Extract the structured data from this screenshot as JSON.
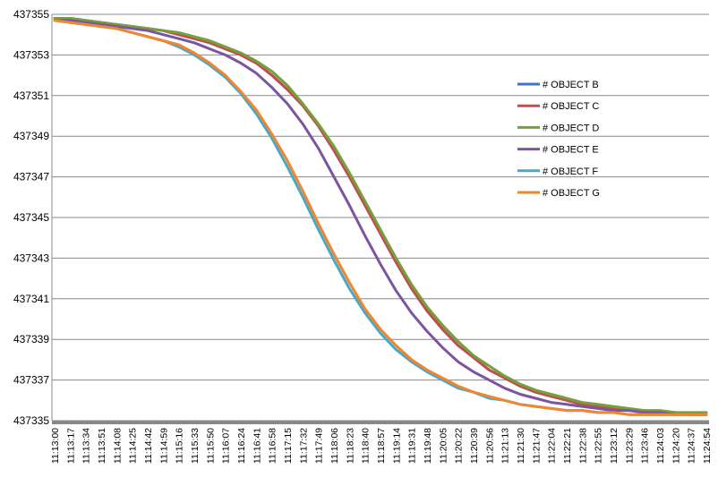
{
  "chart_data": {
    "type": "line",
    "title": "",
    "xlabel": "",
    "ylabel": "",
    "ylim": [
      437335,
      437355
    ],
    "y_ticks": [
      "437335",
      "437337",
      "437339",
      "437341",
      "437343",
      "437345",
      "437347",
      "437349",
      "437351",
      "437353",
      "437355"
    ],
    "x": [
      "11:13:00",
      "11:13:17",
      "11:13:34",
      "11:13:51",
      "11:14:08",
      "11:14:25",
      "11:14:42",
      "11:14:59",
      "11:15:16",
      "11:15:33",
      "11:15:50",
      "11:16:07",
      "11:16:24",
      "11:16:41",
      "11:16:58",
      "11:17:15",
      "11:17:32",
      "11:17:49",
      "11:18:06",
      "11:18:23",
      "11:18:40",
      "11:18:57",
      "11:19:14",
      "11:19:31",
      "11:19:48",
      "11:20:05",
      "11:20:22",
      "11:20:39",
      "11:20:56",
      "11:21:13",
      "11:21:30",
      "11:21:47",
      "11:22:04",
      "11:22:21",
      "11:22:38",
      "11:22:55",
      "11:23:12",
      "11:23:29",
      "11:23:46",
      "11:24:03",
      "11:24:20",
      "11:24:37",
      "11:24:54"
    ],
    "grid": true,
    "legend_position": "right",
    "series": [
      {
        "name": "# OBJECT B",
        "color": "#4472c4",
        "values": [
          437354.8,
          437354.8,
          437354.7,
          437354.6,
          437354.5,
          437354.4,
          437354.3,
          437354.2,
          437354.0,
          437353.8,
          437353.6,
          437353.3,
          437353.0,
          437352.6,
          437352.0,
          437351.3,
          437350.5,
          437349.5,
          437348.3,
          437347.0,
          437345.6,
          437344.2,
          437342.8,
          437341.5,
          437340.4,
          437339.5,
          437338.7,
          437338.1,
          437337.5,
          437337.1,
          437336.7,
          437336.4,
          437336.2,
          437336.0,
          437335.8,
          437335.7,
          437335.6,
          437335.5,
          437335.5,
          437335.4,
          437335.4,
          437335.3,
          437335.3
        ]
      },
      {
        "name": "# OBJECT C",
        "color": "#c0504d",
        "values": [
          437354.8,
          437354.8,
          437354.7,
          437354.6,
          437354.5,
          437354.4,
          437354.3,
          437354.2,
          437354.0,
          437353.8,
          437353.6,
          437353.3,
          437353.0,
          437352.6,
          437352.0,
          437351.3,
          437350.5,
          437349.5,
          437348.3,
          437347.0,
          437345.6,
          437344.2,
          437342.8,
          437341.5,
          437340.4,
          437339.5,
          437338.7,
          437338.1,
          437337.5,
          437337.1,
          437336.7,
          437336.4,
          437336.2,
          437336.0,
          437335.8,
          437335.7,
          437335.6,
          437335.5,
          437335.5,
          437335.4,
          437335.4,
          437335.3,
          437335.3
        ]
      },
      {
        "name": "# OBJECT D",
        "color": "#77a03a",
        "values": [
          437354.8,
          437354.8,
          437354.7,
          437354.6,
          437354.5,
          437354.4,
          437354.3,
          437354.2,
          437354.1,
          437353.9,
          437353.7,
          437353.4,
          437353.1,
          437352.7,
          437352.2,
          437351.5,
          437350.6,
          437349.6,
          437348.5,
          437347.2,
          437345.8,
          437344.4,
          437343.0,
          437341.7,
          437340.6,
          437339.7,
          437338.9,
          437338.2,
          437337.7,
          437337.2,
          437336.8,
          437336.5,
          437336.3,
          437336.1,
          437335.9,
          437335.8,
          437335.7,
          437335.6,
          437335.5,
          437335.5,
          437335.4,
          437335.4,
          437335.4
        ]
      },
      {
        "name": "# OBJECT E",
        "color": "#7a55a0",
        "values": [
          437354.7,
          437354.7,
          437354.6,
          437354.5,
          437354.4,
          437354.3,
          437354.2,
          437354.0,
          437353.8,
          437353.6,
          437353.3,
          437353.0,
          437352.6,
          437352.1,
          437351.4,
          437350.6,
          437349.6,
          437348.4,
          437347.0,
          437345.6,
          437344.1,
          437342.7,
          437341.4,
          437340.3,
          437339.4,
          437338.6,
          437337.9,
          437337.4,
          437337.0,
          437336.6,
          437336.3,
          437336.1,
          437335.9,
          437335.8,
          437335.7,
          437335.6,
          437335.5,
          437335.5,
          437335.4,
          437335.4,
          437335.3,
          437335.3,
          437335.3
        ]
      },
      {
        "name": "# OBJECT F",
        "color": "#4aa7c5",
        "values": [
          437354.7,
          437354.6,
          437354.5,
          437354.4,
          437354.3,
          437354.1,
          437353.9,
          437353.7,
          437353.4,
          437353.0,
          437352.5,
          437351.9,
          437351.1,
          437350.1,
          437348.9,
          437347.5,
          437346.0,
          437344.4,
          437342.9,
          437341.5,
          437340.3,
          437339.3,
          437338.5,
          437337.9,
          437337.4,
          437337.0,
          437336.6,
          437336.4,
          437336.1,
          437336.0,
          437335.8,
          437335.7,
          437335.6,
          437335.5,
          437335.5,
          437335.4,
          437335.4,
          437335.3,
          437335.3,
          437335.3,
          437335.3,
          437335.3,
          437335.3
        ]
      },
      {
        "name": "# OBJECT G",
        "color": "#f0862f",
        "values": [
          437354.7,
          437354.6,
          437354.5,
          437354.4,
          437354.3,
          437354.1,
          437353.9,
          437353.7,
          437353.5,
          437353.1,
          437352.6,
          437352.0,
          437351.2,
          437350.3,
          437349.1,
          437347.8,
          437346.3,
          437344.7,
          437343.2,
          437341.8,
          437340.5,
          437339.5,
          437338.7,
          437338.0,
          437337.5,
          437337.1,
          437336.7,
          437336.4,
          437336.2,
          437336.0,
          437335.8,
          437335.7,
          437335.6,
          437335.5,
          437335.5,
          437335.4,
          437335.4,
          437335.3,
          437335.3,
          437335.3,
          437335.3,
          437335.3,
          437335.3
        ]
      }
    ]
  }
}
